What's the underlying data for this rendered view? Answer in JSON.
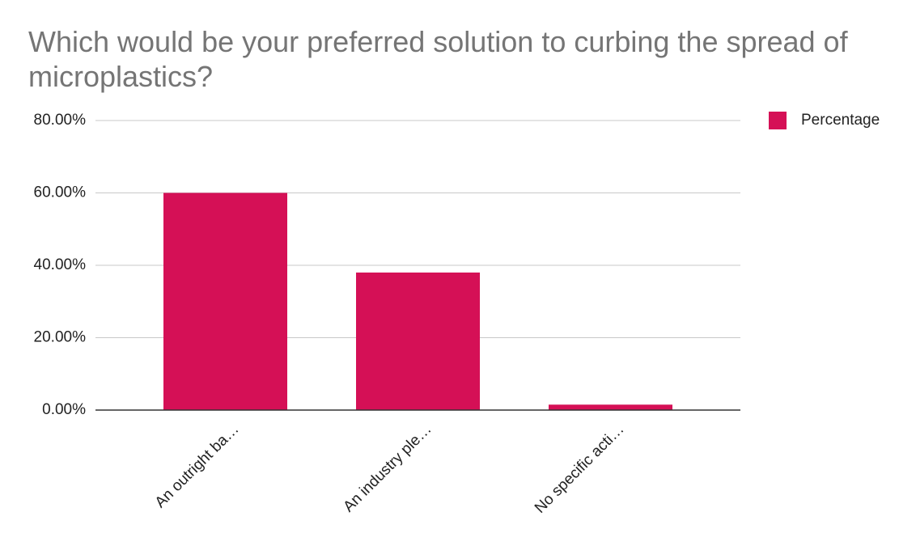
{
  "chart_data": {
    "type": "bar",
    "title": "Which would be your preferred solution to curbing the spread of microplastics?",
    "categories": [
      "An outright ba…",
      "An industry ple…",
      "No specific acti…"
    ],
    "series": [
      {
        "name": "Percentage",
        "color": "#d51056",
        "values": [
          60,
          38,
          1.5
        ]
      }
    ],
    "ylim": [
      0,
      80
    ],
    "yticks": [
      {
        "value": 0,
        "label": "0.00%"
      },
      {
        "value": 20,
        "label": "20.00%"
      },
      {
        "value": 40,
        "label": "40.00%"
      },
      {
        "value": 60,
        "label": "60.00%"
      },
      {
        "value": 80,
        "label": "80.00%"
      }
    ],
    "grid": true,
    "legend": "right"
  }
}
